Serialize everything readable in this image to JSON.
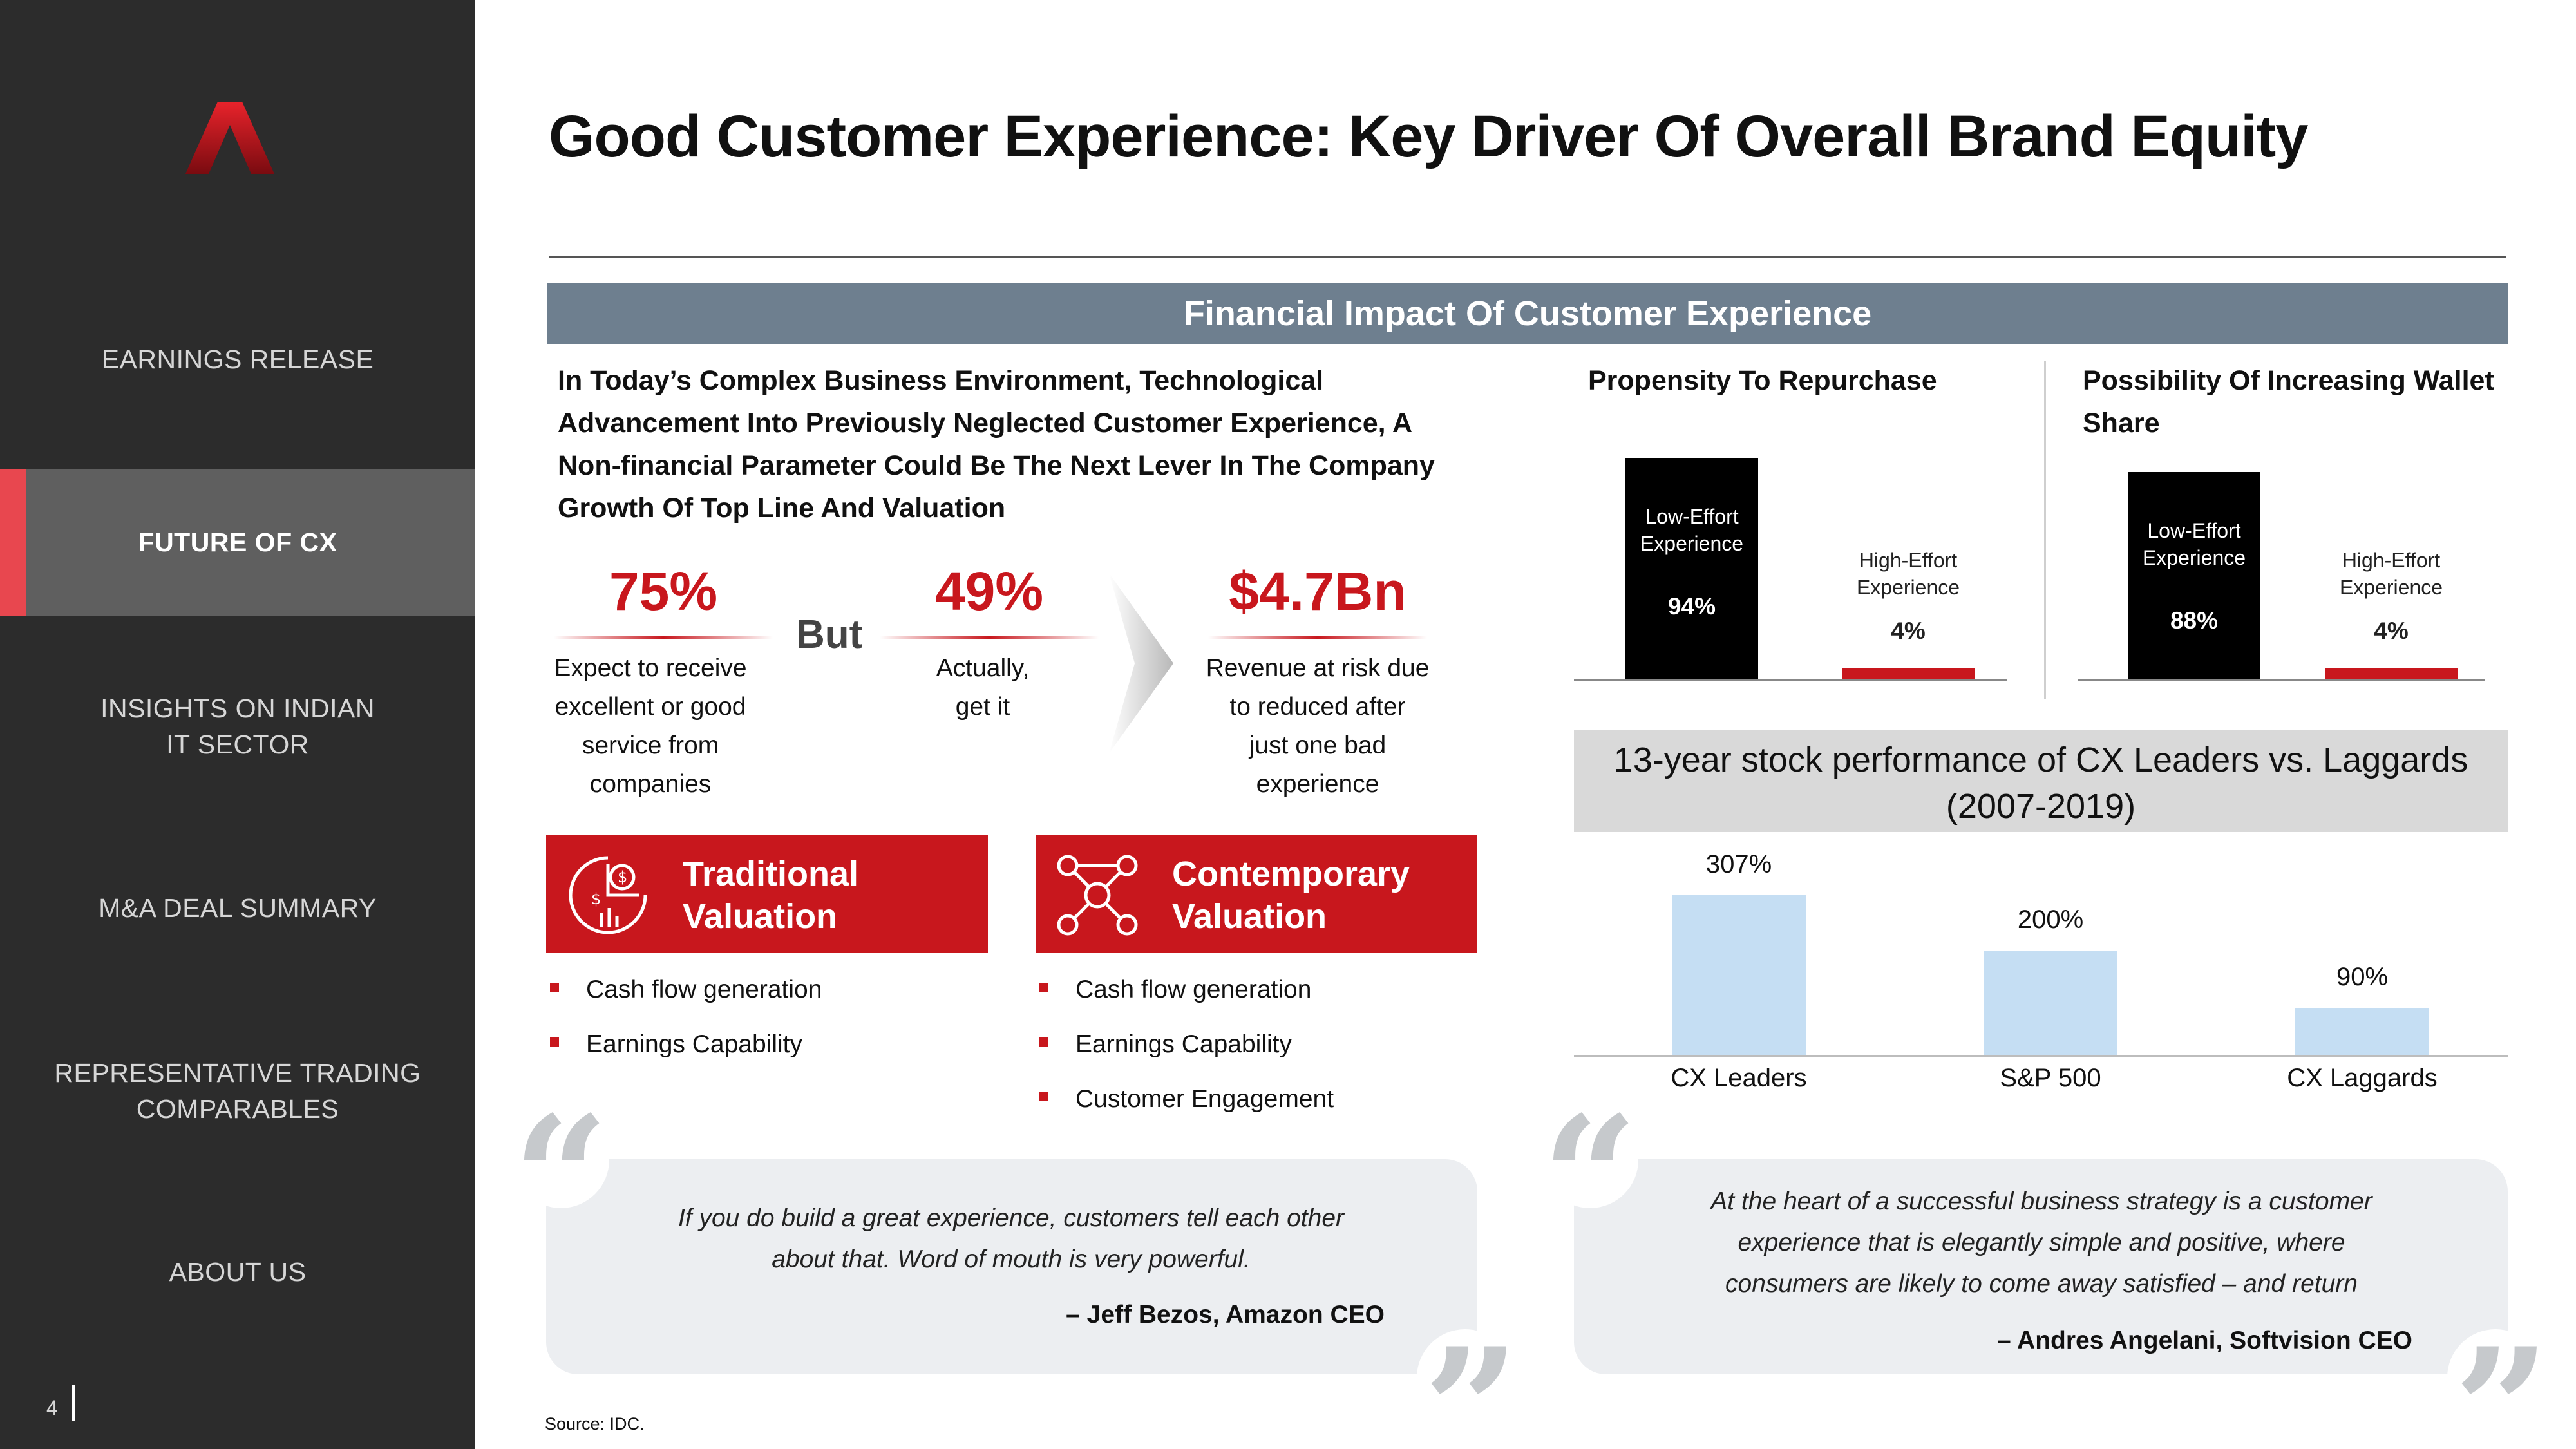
{
  "sidebar": {
    "items": [
      {
        "label": "EARNINGS RELEASE"
      },
      {
        "label": "FUTURE OF CX"
      },
      {
        "label": "INSIGHTS ON INDIAN\nIT SECTOR"
      },
      {
        "label": "M&A DEAL SUMMARY"
      },
      {
        "label": "REPRESENTATIVE TRADING\nCOMPARABLES"
      },
      {
        "label": "ABOUT US"
      }
    ],
    "active_index": 1,
    "page_number": "4",
    "accent_color": "#e8474f"
  },
  "header": {
    "title": "Good Customer Experience: Key Driver Of Overall Brand Equity",
    "banner": "Financial Impact Of Customer Experience"
  },
  "intro": "In Today’s Complex Business Environment, Technological Advancement Into Previously Neglected Customer Experience, A Non-financial Parameter Could Be The Next Lever In The Company Growth Of Top Line And Valuation",
  "stats": [
    {
      "value": "75%",
      "desc": "Expect to receive\nexcellent or good\nservice from\ncompanies"
    },
    {
      "value": "49%",
      "desc": "Actually,\nget it"
    },
    {
      "value": "$4.7Bn",
      "desc": "Revenue at risk due\nto reduced after\njust one bad\nexperience"
    }
  ],
  "but_word": "But",
  "valuation": {
    "traditional": {
      "title_line1": "Traditional",
      "title_line2": "Valuation",
      "icon": "pie-chart-dollar-icon",
      "bullets": [
        "Cash flow generation",
        "Earnings Capability"
      ]
    },
    "contemporary": {
      "title_line1": "Contemporary",
      "title_line2": "Valuation",
      "icon": "network-people-icon",
      "bullets": [
        "Cash flow generation",
        "Earnings Capability",
        "Customer Engagement"
      ]
    }
  },
  "quotes": [
    {
      "text": "If you do build a great experience, customers tell each other about that. Word of mouth is very powerful.",
      "author": "– Jeff Bezos, Amazon CEO"
    },
    {
      "text": "At the heart of a successful business strategy is a customer experience that is elegantly simple and positive, where consumers are likely to come away satisfied – and return",
      "author": "– Andres Angelani, Softvision CEO"
    }
  ],
  "chart_data": [
    {
      "type": "bar",
      "title": "Propensity To Repurchase",
      "categories": [
        "Low-Effort\nExperience",
        "High-Effort\nExperience"
      ],
      "values": [
        94,
        4
      ],
      "value_labels": [
        "94%",
        "4%"
      ],
      "colors": [
        "#000000",
        "#c8171d"
      ],
      "ylim": [
        0,
        100
      ]
    },
    {
      "type": "bar",
      "title": "Possibility Of Increasing Wallet Share",
      "categories": [
        "Low-Effort\nExperience",
        "High-Effort\nExperience"
      ],
      "values": [
        88,
        4
      ],
      "value_labels": [
        "88%",
        "4%"
      ],
      "colors": [
        "#000000",
        "#c8171d"
      ],
      "ylim": [
        0,
        100
      ]
    },
    {
      "type": "bar",
      "title": "13-year stock performance of CX Leaders vs. Laggards (2007-2019)",
      "categories": [
        "CX Leaders",
        "S&P 500",
        "CX Laggards"
      ],
      "values": [
        307,
        200,
        90
      ],
      "value_labels": [
        "307%",
        "200%",
        "90%"
      ],
      "colors": [
        "#c5def3"
      ],
      "ylim": [
        0,
        307
      ]
    }
  ],
  "source": "Source: IDC."
}
